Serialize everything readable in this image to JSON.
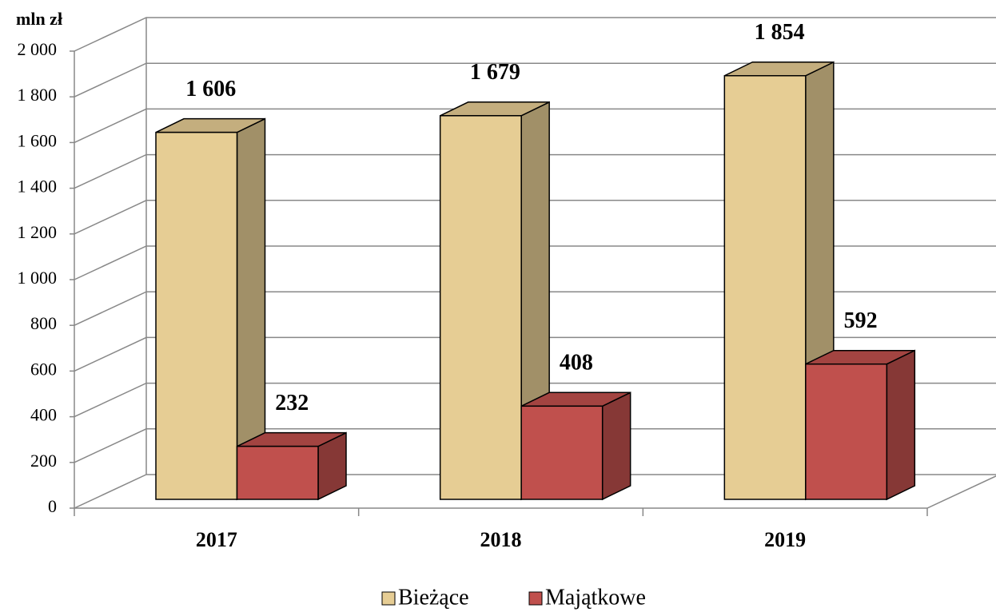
{
  "chart_data": {
    "type": "bar3d",
    "y_label": "mln zł",
    "categories": [
      "2017",
      "2018",
      "2019"
    ],
    "series": [
      {
        "name": "Bieżące",
        "color": "#e6cd94",
        "values": [
          1606,
          1679,
          1854
        ],
        "value_labels": [
          "1 606",
          "1 679",
          "1 854"
        ]
      },
      {
        "name": "Majątkowe",
        "color": "#c0504d",
        "values": [
          232,
          408,
          592
        ],
        "value_labels": [
          "232",
          "408",
          "592"
        ]
      }
    ],
    "ylim": [
      0,
      2000
    ],
    "yticks": [
      0,
      200,
      400,
      600,
      800,
      {
        "value": 1000,
        "label": "1 000"
      },
      {
        "value": 1200,
        "label": "1 200"
      },
      {
        "value": 1400,
        "label": "1 400"
      },
      {
        "value": 1600,
        "label": "1 600"
      },
      {
        "value": 1800,
        "label": "1 800"
      },
      {
        "value": 2000,
        "label": "2 000"
      }
    ],
    "grid": true
  }
}
